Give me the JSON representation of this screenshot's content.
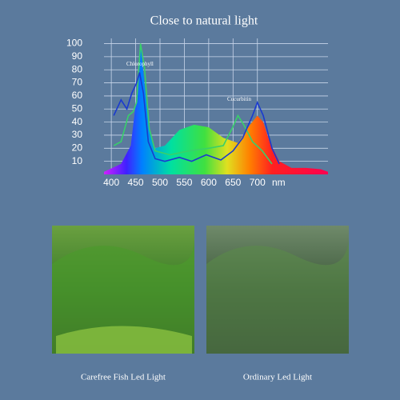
{
  "chart_data": {
    "type": "spectrum",
    "title": "Close to natural light",
    "x_label": "nm",
    "xlim": [
      385,
      845
    ],
    "ylim": [
      0,
      104
    ],
    "xticks": [
      400,
      450,
      500,
      550,
      600,
      650,
      700
    ],
    "yticks": [
      10,
      20,
      30,
      40,
      50,
      60,
      70,
      80,
      90,
      100
    ],
    "grid": true,
    "annotations": [
      "Chlorophyll",
      "Cucurbitin"
    ],
    "series": [
      {
        "kind": "area",
        "x": [
          385,
          420,
          440,
          452,
          460,
          468,
          478,
          490,
          510,
          540,
          570,
          600,
          630,
          660,
          685,
          700,
          712,
          725,
          745,
          770,
          800,
          830,
          845
        ],
        "values": [
          2,
          8,
          22,
          60,
          100,
          70,
          35,
          20,
          22,
          34,
          38,
          36,
          28,
          24,
          38,
          45,
          40,
          25,
          10,
          5,
          5,
          4,
          2
        ]
      },
      {
        "kind": "line",
        "color": "#38d06a",
        "x": [
          405,
          420,
          435,
          445,
          452,
          460,
          468,
          478,
          490,
          520,
          560,
          600,
          630,
          648,
          660,
          672,
          690,
          710,
          730
        ],
        "values": [
          22,
          25,
          45,
          48,
          55,
          100,
          82,
          35,
          18,
          15,
          18,
          20,
          22,
          35,
          45,
          38,
          25,
          18,
          8
        ]
      },
      {
        "kind": "line",
        "color": "#1a3ad0",
        "x": [
          405,
          420,
          432,
          442,
          452,
          458,
          466,
          476,
          490,
          510,
          540,
          565,
          595,
          625,
          650,
          670,
          690,
          700,
          712,
          730,
          745
        ],
        "values": [
          45,
          57,
          50,
          62,
          70,
          78,
          62,
          25,
          12,
          10,
          13,
          10,
          15,
          11,
          18,
          28,
          45,
          55,
          45,
          20,
          8
        ]
      }
    ]
  },
  "captions": [
    "Carefree Fish Led Light",
    "Ordinary Led Light"
  ]
}
